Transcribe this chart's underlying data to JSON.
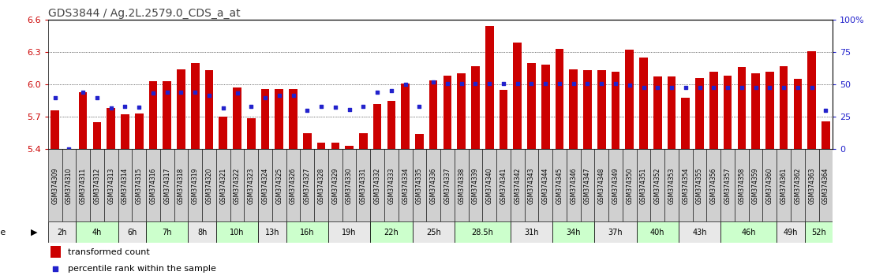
{
  "title": "GDS3844 / Ag.2L.2579.0_CDS_a_at",
  "samples": [
    "GSM374309",
    "GSM374310",
    "GSM374311",
    "GSM374312",
    "GSM374313",
    "GSM374314",
    "GSM374315",
    "GSM374316",
    "GSM374317",
    "GSM374318",
    "GSM374319",
    "GSM374320",
    "GSM374321",
    "GSM374322",
    "GSM374323",
    "GSM374324",
    "GSM374325",
    "GSM374326",
    "GSM374327",
    "GSM374328",
    "GSM374329",
    "GSM374330",
    "GSM374331",
    "GSM374332",
    "GSM374333",
    "GSM374334",
    "GSM374335",
    "GSM374336",
    "GSM374337",
    "GSM374338",
    "GSM374339",
    "GSM374340",
    "GSM374341",
    "GSM374342",
    "GSM374343",
    "GSM374344",
    "GSM374345",
    "GSM374346",
    "GSM374347",
    "GSM374348",
    "GSM374349",
    "GSM374350",
    "GSM374351",
    "GSM374352",
    "GSM374353",
    "GSM374354",
    "GSM374355",
    "GSM374356",
    "GSM374357",
    "GSM374358",
    "GSM374359",
    "GSM374360",
    "GSM374361",
    "GSM374362",
    "GSM374363",
    "GSM374364"
  ],
  "bar_values": [
    5.76,
    5.4,
    5.93,
    5.65,
    5.78,
    5.72,
    5.73,
    6.03,
    6.03,
    6.14,
    6.2,
    6.13,
    5.7,
    5.97,
    5.69,
    5.96,
    5.96,
    5.96,
    5.55,
    5.46,
    5.46,
    5.43,
    5.55,
    5.82,
    5.85,
    6.01,
    5.54,
    6.04,
    6.08,
    6.1,
    6.17,
    6.54,
    5.95,
    6.39,
    6.2,
    6.18,
    6.33,
    6.14,
    6.13,
    6.13,
    6.12,
    6.32,
    6.25,
    6.07,
    6.07,
    5.88,
    6.06,
    6.12,
    6.08,
    6.16,
    6.1,
    6.12,
    6.17,
    6.05,
    6.31,
    5.66
  ],
  "blue_values": [
    5.88,
    5.4,
    5.93,
    5.88,
    5.78,
    5.8,
    5.79,
    5.92,
    5.93,
    5.93,
    5.93,
    5.9,
    5.78,
    5.92,
    5.8,
    5.88,
    5.9,
    5.9,
    5.76,
    5.8,
    5.79,
    5.77,
    5.8,
    5.93,
    5.94,
    6.0,
    5.8,
    6.02,
    6.01,
    6.01,
    6.01,
    6.01,
    6.01,
    6.01,
    6.01,
    6.01,
    6.01,
    6.01,
    6.01,
    6.01,
    6.01,
    5.99,
    5.97,
    5.97,
    5.97,
    5.97,
    5.97,
    5.97,
    5.97,
    5.97,
    5.97,
    5.97,
    5.97,
    5.97,
    5.97,
    5.76
  ],
  "time_groups": [
    {
      "label": "2h",
      "start": 0,
      "end": 2,
      "light": false
    },
    {
      "label": "4h",
      "start": 2,
      "end": 5,
      "light": true
    },
    {
      "label": "6h",
      "start": 5,
      "end": 7,
      "light": false
    },
    {
      "label": "7h",
      "start": 7,
      "end": 10,
      "light": true
    },
    {
      "label": "8h",
      "start": 10,
      "end": 12,
      "light": false
    },
    {
      "label": "10h",
      "start": 12,
      "end": 15,
      "light": true
    },
    {
      "label": "13h",
      "start": 15,
      "end": 17,
      "light": false
    },
    {
      "label": "16h",
      "start": 17,
      "end": 20,
      "light": true
    },
    {
      "label": "19h",
      "start": 20,
      "end": 23,
      "light": false
    },
    {
      "label": "22h",
      "start": 23,
      "end": 26,
      "light": true
    },
    {
      "label": "25h",
      "start": 26,
      "end": 29,
      "light": false
    },
    {
      "label": "28.5h",
      "start": 29,
      "end": 33,
      "light": true
    },
    {
      "label": "31h",
      "start": 33,
      "end": 36,
      "light": false
    },
    {
      "label": "34h",
      "start": 36,
      "end": 39,
      "light": true
    },
    {
      "label": "37h",
      "start": 39,
      "end": 42,
      "light": false
    },
    {
      "label": "40h",
      "start": 42,
      "end": 45,
      "light": true
    },
    {
      "label": "43h",
      "start": 45,
      "end": 48,
      "light": false
    },
    {
      "label": "46h",
      "start": 48,
      "end": 52,
      "light": true
    },
    {
      "label": "49h",
      "start": 52,
      "end": 54,
      "light": false
    },
    {
      "label": "52h",
      "start": 54,
      "end": 56,
      "light": true
    }
  ],
  "ylim": [
    5.4,
    6.6
  ],
  "yticks": [
    5.4,
    5.7,
    6.0,
    6.3,
    6.6
  ],
  "right_yticks": [
    0,
    25,
    50,
    75,
    100
  ],
  "bar_color": "#cc0000",
  "dot_color": "#2222cc",
  "bar_bottom": 5.4,
  "title_color": "#444444",
  "axis_label_color": "#cc0000",
  "right_axis_color": "#2222cc",
  "cell_bg": "#d0d0d0",
  "strip_light": "#ccffcc",
  "strip_dark": "#e8e8e8",
  "legend_bar_label": "transformed count",
  "legend_dot_label": "percentile rank within the sample"
}
